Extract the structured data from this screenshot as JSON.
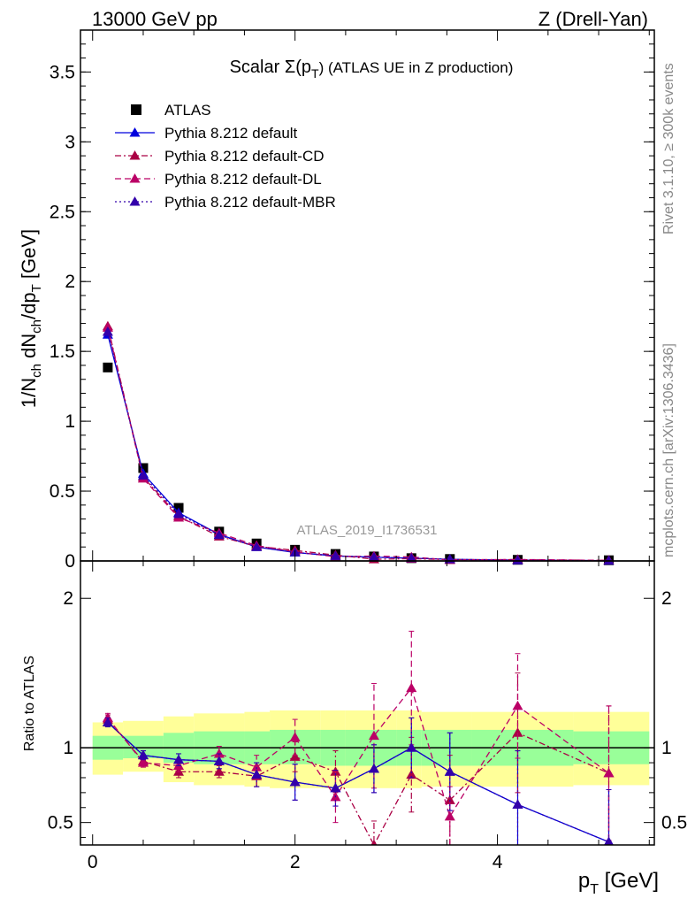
{
  "header": {
    "left": "13000 GeV pp",
    "right": "Z (Drell-Yan)"
  },
  "side_labels": {
    "rivet": "Rivet 3.1.10, ≥ 300k events",
    "mcplots": "mcplots.cern.ch [arXiv:1306.3436]"
  },
  "watermark": "ATLAS_2019_I1736531",
  "colors": {
    "atlas": "#000000",
    "default": "#0000dd",
    "cd": "#aa0044",
    "dl": "#bb0066",
    "mbr": "#3300aa",
    "band_outer": "#ffff99",
    "band_inner": "#99ff99"
  },
  "chart_data": [
    {
      "type": "line",
      "panel": "main",
      "title": "Scalar Σ(p_T) (ATLAS UE in Z production)",
      "title_main": "Scalar Σ(p",
      "title_sub": "T",
      "title_rest": ") (ATLAS UE in Z production)",
      "ylabel": "1/N_ch dN_ch/dp_T [GeV]",
      "xlabel": "p_T [GeV]",
      "xlim": [
        -0.12,
        5.55
      ],
      "ylim": [
        0,
        3.8
      ],
      "yticks": [
        0,
        0.5,
        1,
        1.5,
        2,
        2.5,
        3,
        3.5
      ],
      "ytick_labels": [
        "0",
        "0.5",
        "1",
        "1.5",
        "2",
        "2.5",
        "3",
        "3.5"
      ],
      "x": [
        0.15,
        0.5,
        0.85,
        1.25,
        1.62,
        2.0,
        2.4,
        2.78,
        3.15,
        3.53,
        4.2,
        5.1
      ],
      "series": [
        {
          "name": "ATLAS",
          "key": "atlas",
          "style": "square",
          "values": [
            1.385,
            0.665,
            0.38,
            0.21,
            0.125,
            0.08,
            0.05,
            0.032,
            0.02,
            0.014,
            0.008,
            0.005
          ]
        },
        {
          "name": "Pythia 8.212 default",
          "key": "default",
          "style": "solid",
          "values": [
            1.62,
            0.625,
            0.345,
            0.19,
            0.1,
            0.06,
            0.036,
            0.027,
            0.02,
            0.012,
            0.005,
            0.002
          ]
        },
        {
          "name": "Pythia 8.212 default-CD",
          "key": "cd",
          "style": "dashdot",
          "values": [
            1.68,
            0.6,
            0.32,
            0.175,
            0.105,
            0.075,
            0.042,
            0.012,
            0.016,
            0.009,
            0.009,
            0.004
          ]
        },
        {
          "name": "Pythia 8.212 default-DL",
          "key": "dl",
          "style": "dashed",
          "values": [
            1.67,
            0.59,
            0.31,
            0.2,
            0.11,
            0.065,
            0.03,
            0.035,
            0.028,
            0.0075,
            0.0105,
            0.004
          ]
        },
        {
          "name": "Pythia 8.212 default-MBR",
          "key": "mbr",
          "style": "dotted",
          "values": [
            1.64,
            0.61,
            0.335,
            0.185,
            0.1,
            0.062,
            0.036,
            0.027,
            0.02,
            0.012,
            0.005,
            0.002
          ]
        }
      ]
    },
    {
      "type": "line",
      "panel": "ratio",
      "ylabel": "Ratio to ATLAS",
      "xlim": [
        -0.12,
        5.55
      ],
      "ylim": [
        0.35,
        2.25
      ],
      "yticks": [
        0.5,
        1,
        2
      ],
      "ytick_labels": [
        "0.5",
        "1",
        "2"
      ],
      "xticks": [
        0,
        2,
        4
      ],
      "xtick_labels": [
        "0",
        "2",
        "4"
      ],
      "x": [
        0.15,
        0.5,
        0.85,
        1.25,
        1.62,
        2.0,
        2.4,
        2.78,
        3.15,
        3.53,
        4.2,
        5.1
      ],
      "bin_edges": [
        0.0,
        0.3,
        0.7,
        1.0,
        1.5,
        1.75,
        2.25,
        2.5,
        3.0,
        3.25,
        3.75,
        4.75,
        5.5
      ],
      "band_inner": [
        [
          0.92,
          1.08
        ],
        [
          0.93,
          1.08
        ],
        [
          0.9,
          1.1
        ],
        [
          0.89,
          1.11
        ],
        [
          0.89,
          1.11
        ],
        [
          0.89,
          1.12
        ],
        [
          0.88,
          1.12
        ],
        [
          0.88,
          1.12
        ],
        [
          0.88,
          1.12
        ],
        [
          0.88,
          1.12
        ],
        [
          0.88,
          1.12
        ],
        [
          0.89,
          1.11
        ]
      ],
      "band_outer": [
        [
          0.82,
          1.17
        ],
        [
          0.84,
          1.18
        ],
        [
          0.77,
          1.21
        ],
        [
          0.75,
          1.23
        ],
        [
          0.74,
          1.24
        ],
        [
          0.73,
          1.25
        ],
        [
          0.73,
          1.25
        ],
        [
          0.73,
          1.25
        ],
        [
          0.73,
          1.25
        ],
        [
          0.74,
          1.24
        ],
        [
          0.74,
          1.24
        ],
        [
          0.75,
          1.24
        ]
      ],
      "series": [
        {
          "name": "Pythia 8.212 default",
          "key": "default",
          "style": "solid",
          "values": [
            1.17,
            0.95,
            0.92,
            0.91,
            0.82,
            0.77,
            0.73,
            0.86,
            1.0,
            0.84,
            0.62,
            0.37
          ],
          "errors": [
            0.03,
            0.03,
            0.04,
            0.05,
            0.08,
            0.12,
            0.12,
            0.16,
            0.2,
            0.26,
            0.36,
            0.35
          ]
        },
        {
          "name": "Pythia 8.212 default-CD",
          "key": "cd",
          "style": "dashdot",
          "values": [
            1.19,
            0.91,
            0.84,
            0.84,
            0.81,
            0.94,
            0.84,
            0.35,
            0.82,
            0.65,
            1.1,
            0.83
          ],
          "errors": [
            0.03,
            0.03,
            0.04,
            0.04,
            0.07,
            0.1,
            0.14,
            0.16,
            0.25,
            0.3,
            0.4,
            0.45
          ]
        },
        {
          "name": "Pythia 8.212 default-DL",
          "key": "dl",
          "style": "dashed",
          "values": [
            1.2,
            0.9,
            0.88,
            0.96,
            0.87,
            1.07,
            0.67,
            1.08,
            1.4,
            0.54,
            1.28,
            0.83
          ],
          "errors": [
            0.03,
            0.03,
            0.04,
            0.05,
            0.08,
            0.12,
            0.17,
            0.35,
            0.38,
            0.2,
            0.35,
            0.45
          ]
        },
        {
          "name": "Pythia 8.212 default-MBR",
          "key": "mbr",
          "style": "dotted",
          "values": [
            1.17,
            0.95,
            0.92,
            0.91,
            0.82,
            0.77,
            0.73,
            0.86,
            1.0,
            0.84,
            0.62,
            0.37
          ],
          "errors": [
            0.03,
            0.03,
            0.04,
            0.05,
            0.08,
            0.12,
            0.12,
            0.16,
            0.2,
            0.26,
            0.36,
            0.35
          ]
        }
      ]
    }
  ]
}
